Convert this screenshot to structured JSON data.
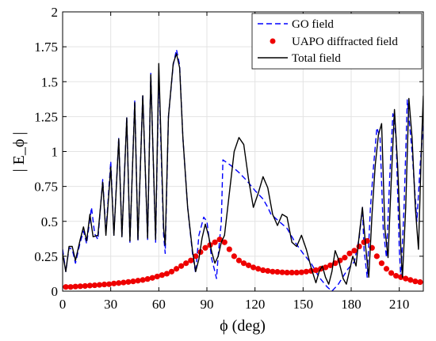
{
  "chart_data": {
    "type": "line",
    "xlabel": "ϕ (deg)",
    "ylabel": "| E_ϕ |",
    "xlim": [
      0,
      225
    ],
    "ylim": [
      0,
      2
    ],
    "x_ticks": [
      "0",
      "30",
      "60",
      "90",
      "120",
      "150",
      "180",
      "210"
    ],
    "y_ticks": [
      "0",
      "0.25",
      "0.5",
      "0.75",
      "1",
      "1.25",
      "1.5",
      "1.75",
      "2"
    ],
    "grid": true,
    "legend_position": "top-right",
    "series": [
      {
        "name": "GO field",
        "style": "dashed",
        "color": "#0000ff",
        "points": [
          [
            0,
            0.3
          ],
          [
            2,
            0.14
          ],
          [
            4,
            0.31
          ],
          [
            6,
            0.3
          ],
          [
            8,
            0.2
          ],
          [
            11,
            0.35
          ],
          [
            13,
            0.43
          ],
          [
            15,
            0.34
          ],
          [
            18,
            0.6
          ],
          [
            20,
            0.41
          ],
          [
            22,
            0.37
          ],
          [
            25,
            0.8
          ],
          [
            27,
            0.42
          ],
          [
            30,
            0.93
          ],
          [
            32,
            0.4
          ],
          [
            35,
            1.1
          ],
          [
            37,
            0.39
          ],
          [
            40,
            1.25
          ],
          [
            42,
            0.35
          ],
          [
            45,
            1.37
          ],
          [
            47,
            0.36
          ],
          [
            50,
            1.41
          ],
          [
            53,
            0.37
          ],
          [
            55,
            1.56
          ],
          [
            58,
            0.35
          ],
          [
            60,
            1.57
          ],
          [
            63,
            0.4
          ],
          [
            64,
            0.27
          ],
          [
            66,
            1.25
          ],
          [
            69,
            1.62
          ],
          [
            71,
            1.73
          ],
          [
            73,
            1.62
          ],
          [
            75,
            1.1
          ],
          [
            78,
            0.6
          ],
          [
            81,
            0.27
          ],
          [
            83,
            0.13
          ],
          [
            85,
            0.4
          ],
          [
            88,
            0.53
          ],
          [
            90,
            0.5
          ],
          [
            93,
            0.23
          ],
          [
            95,
            0.14
          ],
          [
            96,
            0.09
          ],
          [
            97,
            0.25
          ],
          [
            99,
            0.5
          ],
          [
            100,
            0.94
          ],
          [
            105,
            0.9
          ],
          [
            110,
            0.85
          ],
          [
            115,
            0.79
          ],
          [
            120,
            0.72
          ],
          [
            125,
            0.66
          ],
          [
            128,
            0.6
          ],
          [
            130,
            0.55
          ],
          [
            135,
            0.5
          ],
          [
            140,
            0.45
          ],
          [
            145,
            0.35
          ],
          [
            150,
            0.27
          ],
          [
            155,
            0.2
          ],
          [
            160,
            0.1
          ],
          [
            165,
            0.03
          ],
          [
            168,
            0.0
          ],
          [
            172,
            0.05
          ],
          [
            178,
            0.16
          ],
          [
            182,
            0.21
          ],
          [
            185,
            0.38
          ],
          [
            187,
            0.6
          ],
          [
            188,
            0.3
          ],
          [
            190,
            0.1
          ],
          [
            192,
            0.6
          ],
          [
            194,
            0.9
          ],
          [
            196,
            1.17
          ],
          [
            198,
            1.1
          ],
          [
            200,
            0.45
          ],
          [
            202,
            0.24
          ],
          [
            204,
            0.8
          ],
          [
            206,
            1.27
          ],
          [
            208,
            1.1
          ],
          [
            210,
            0.3
          ],
          [
            211,
            0.1
          ],
          [
            213,
            0.6
          ],
          [
            215,
            1.37
          ],
          [
            218,
            1.0
          ],
          [
            221,
            0.5
          ],
          [
            223,
            0.9
          ],
          [
            225,
            1.2
          ]
        ]
      },
      {
        "name": "UAPO diffracted field",
        "style": "dots",
        "color": "#ee0000",
        "points": [
          [
            2,
            0.03
          ],
          [
            5,
            0.03
          ],
          [
            8,
            0.033
          ],
          [
            11,
            0.035
          ],
          [
            14,
            0.037
          ],
          [
            17,
            0.04
          ],
          [
            20,
            0.042
          ],
          [
            23,
            0.045
          ],
          [
            26,
            0.048
          ],
          [
            29,
            0.05
          ],
          [
            32,
            0.055
          ],
          [
            35,
            0.058
          ],
          [
            38,
            0.062
          ],
          [
            41,
            0.066
          ],
          [
            44,
            0.07
          ],
          [
            47,
            0.075
          ],
          [
            50,
            0.08
          ],
          [
            53,
            0.087
          ],
          [
            56,
            0.095
          ],
          [
            59,
            0.105
          ],
          [
            62,
            0.115
          ],
          [
            65,
            0.125
          ],
          [
            68,
            0.14
          ],
          [
            71,
            0.16
          ],
          [
            74,
            0.18
          ],
          [
            77,
            0.2
          ],
          [
            80,
            0.22
          ],
          [
            83,
            0.25
          ],
          [
            86,
            0.28
          ],
          [
            89,
            0.31
          ],
          [
            92,
            0.33
          ],
          [
            95,
            0.35
          ],
          [
            98,
            0.37
          ],
          [
            101,
            0.35
          ],
          [
            104,
            0.3
          ],
          [
            107,
            0.25
          ],
          [
            110,
            0.22
          ],
          [
            113,
            0.2
          ],
          [
            116,
            0.185
          ],
          [
            119,
            0.17
          ],
          [
            122,
            0.16
          ],
          [
            125,
            0.15
          ],
          [
            128,
            0.145
          ],
          [
            131,
            0.14
          ],
          [
            134,
            0.138
          ],
          [
            137,
            0.135
          ],
          [
            140,
            0.133
          ],
          [
            143,
            0.133
          ],
          [
            146,
            0.133
          ],
          [
            149,
            0.135
          ],
          [
            152,
            0.14
          ],
          [
            155,
            0.145
          ],
          [
            158,
            0.15
          ],
          [
            161,
            0.16
          ],
          [
            164,
            0.17
          ],
          [
            167,
            0.185
          ],
          [
            170,
            0.2
          ],
          [
            173,
            0.22
          ],
          [
            176,
            0.24
          ],
          [
            179,
            0.27
          ],
          [
            182,
            0.29
          ],
          [
            185,
            0.32
          ],
          [
            188,
            0.35
          ],
          [
            190,
            0.36
          ],
          [
            193,
            0.31
          ],
          [
            196,
            0.25
          ],
          [
            199,
            0.2
          ],
          [
            202,
            0.16
          ],
          [
            205,
            0.13
          ],
          [
            208,
            0.11
          ],
          [
            211,
            0.1
          ],
          [
            214,
            0.09
          ],
          [
            217,
            0.08
          ],
          [
            220,
            0.07
          ],
          [
            223,
            0.065
          ]
        ]
      },
      {
        "name": "Total field",
        "style": "solid",
        "color": "#000000",
        "points": [
          [
            0,
            0.27
          ],
          [
            2,
            0.14
          ],
          [
            4,
            0.32
          ],
          [
            6,
            0.32
          ],
          [
            8,
            0.22
          ],
          [
            11,
            0.37
          ],
          [
            13,
            0.46
          ],
          [
            15,
            0.36
          ],
          [
            17,
            0.55
          ],
          [
            19,
            0.39
          ],
          [
            22,
            0.4
          ],
          [
            25,
            0.78
          ],
          [
            27,
            0.4
          ],
          [
            30,
            0.89
          ],
          [
            32,
            0.4
          ],
          [
            35,
            1.09
          ],
          [
            37,
            0.39
          ],
          [
            40,
            1.24
          ],
          [
            42,
            0.36
          ],
          [
            45,
            1.35
          ],
          [
            47,
            0.37
          ],
          [
            50,
            1.4
          ],
          [
            53,
            0.38
          ],
          [
            55,
            1.55
          ],
          [
            58,
            0.37
          ],
          [
            60,
            1.63
          ],
          [
            63,
            0.45
          ],
          [
            64,
            0.33
          ],
          [
            66,
            1.25
          ],
          [
            69,
            1.63
          ],
          [
            71,
            1.7
          ],
          [
            73,
            1.6
          ],
          [
            75,
            1.1
          ],
          [
            78,
            0.6
          ],
          [
            81,
            0.29
          ],
          [
            83,
            0.14
          ],
          [
            85,
            0.23
          ],
          [
            87,
            0.38
          ],
          [
            89,
            0.48
          ],
          [
            91,
            0.4
          ],
          [
            93,
            0.28
          ],
          [
            95,
            0.2
          ],
          [
            97,
            0.25
          ],
          [
            99,
            0.35
          ],
          [
            101,
            0.4
          ],
          [
            104,
            0.7
          ],
          [
            107,
            1.0
          ],
          [
            110,
            1.1
          ],
          [
            113,
            1.05
          ],
          [
            116,
            0.8
          ],
          [
            119,
            0.6
          ],
          [
            122,
            0.7
          ],
          [
            125,
            0.82
          ],
          [
            128,
            0.74
          ],
          [
            131,
            0.55
          ],
          [
            134,
            0.47
          ],
          [
            137,
            0.55
          ],
          [
            140,
            0.53
          ],
          [
            143,
            0.35
          ],
          [
            146,
            0.32
          ],
          [
            149,
            0.4
          ],
          [
            152,
            0.3
          ],
          [
            155,
            0.17
          ],
          [
            158,
            0.06
          ],
          [
            160,
            0.14
          ],
          [
            162,
            0.18
          ],
          [
            164,
            0.1
          ],
          [
            166,
            0.05
          ],
          [
            168,
            0.14
          ],
          [
            170,
            0.29
          ],
          [
            172,
            0.23
          ],
          [
            175,
            0.09
          ],
          [
            177,
            0.05
          ],
          [
            179,
            0.15
          ],
          [
            181,
            0.25
          ],
          [
            183,
            0.18
          ],
          [
            185,
            0.4
          ],
          [
            187,
            0.6
          ],
          [
            189,
            0.32
          ],
          [
            191,
            0.1
          ],
          [
            193,
            0.55
          ],
          [
            195,
            0.9
          ],
          [
            197,
            1.12
          ],
          [
            199,
            1.2
          ],
          [
            201,
            0.45
          ],
          [
            203,
            0.24
          ],
          [
            205,
            0.8
          ],
          [
            207,
            1.3
          ],
          [
            209,
            0.9
          ],
          [
            211,
            0.3
          ],
          [
            212,
            0.1
          ],
          [
            214,
            0.6
          ],
          [
            216,
            1.38
          ],
          [
            218,
            1.1
          ],
          [
            220,
            0.6
          ],
          [
            222,
            0.3
          ],
          [
            224,
            1.1
          ],
          [
            225,
            1.4
          ]
        ]
      }
    ]
  }
}
